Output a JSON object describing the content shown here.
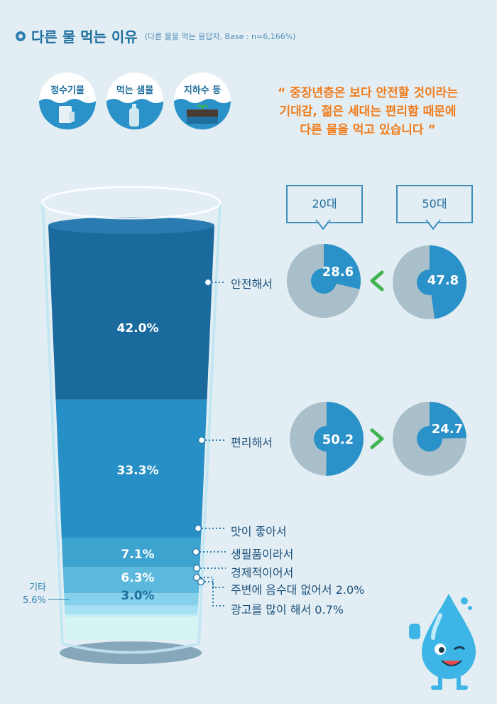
{
  "header": {
    "title": "다른 물 먹는 이유",
    "subtitle": "(다른 물을 먹는 응답자, Base : n=6,166%)"
  },
  "badges": [
    {
      "label": "정수기물",
      "icon": "water-purifier-icon"
    },
    {
      "label": "먹는 샘물",
      "icon": "water-bottle-icon"
    },
    {
      "label": "지하수 등",
      "icon": "groundwater-icon"
    }
  ],
  "quote": {
    "line1": "“ 중장년층은 보다 안전할 것이라는",
    "line2": "기대감, 젊은 세대는 편리함 때문에",
    "line3": "다른 물을 먹고 있습니다 ”"
  },
  "chart_data": [
    {
      "type": "bar",
      "categories": [
        "안전해서",
        "편리해서",
        "맛이 좋아서",
        "생필품이라서",
        "경제적이어서",
        "주변에 음수대 없어서",
        "광고를 많이 해서",
        "기타"
      ],
      "values": [
        42.0,
        33.3,
        7.1,
        6.3,
        3.0,
        2.0,
        0.7,
        5.6
      ],
      "value_labels": [
        "42.0%",
        "33.3%",
        "7.1%",
        "6.3%",
        "3.0%",
        "2.0%",
        "0.7%",
        "5.6%"
      ],
      "right_labels": [
        "안전해서",
        "편리해서",
        "맛이 좋아서",
        "생필품이라서",
        "경제적이어서",
        "주변에 음수대 없어서 2.0%",
        "광고를 많이 해서  0.7%"
      ],
      "other_label": "기타",
      "colors": [
        "#1a6a9e",
        "#2690c6",
        "#3da3cf",
        "#5cb8dc",
        "#85d0ea",
        "#a4e0f2",
        "#c0ecf6",
        "#d4f5f2"
      ]
    },
    {
      "type": "pie",
      "age_groups": [
        "20대",
        "50대"
      ],
      "arrows": [
        "<",
        ">"
      ],
      "rows": [
        {
          "category": "안전해서",
          "values": [
            28.6,
            47.8
          ],
          "labels": [
            "28.6",
            "47.8"
          ]
        },
        {
          "category": "편리해서",
          "values": [
            50.2,
            24.7
          ],
          "labels": [
            "50.2",
            "24.7"
          ]
        }
      ],
      "colors": {
        "value": "#2a92c8",
        "rest": "#a9bfca",
        "arrow": "#3fb34f"
      }
    }
  ]
}
